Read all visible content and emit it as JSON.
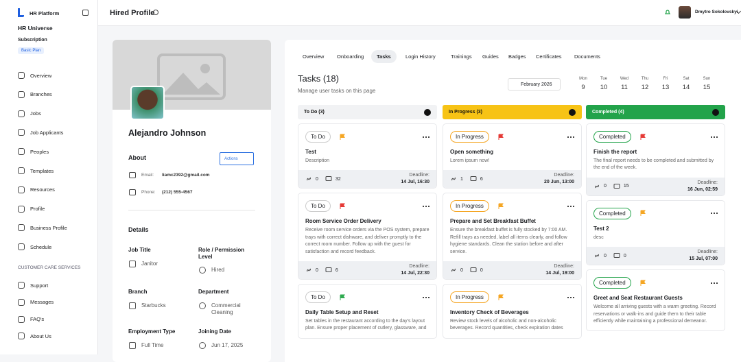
{
  "sidebar": {
    "brand": "HR Platform",
    "org": "HR Universe",
    "subscription_label": "Subscription",
    "plan": "Basic Plan",
    "nav": [
      "Overview",
      "Branches",
      "Jobs",
      "Job Applicants",
      "Peoples",
      "Templates",
      "Resources",
      "Profile",
      "Business Profile",
      "Schedule"
    ],
    "section": "CUSTOMER CARE SERVICES",
    "support_nav": [
      "Support",
      "Messages",
      "FAQ's",
      "About Us"
    ]
  },
  "header": {
    "title": "Hired Profile",
    "user": "Dmytro Sokolovskyi"
  },
  "profile": {
    "name": "Alejandro Johnson",
    "about_title": "About",
    "actions": "Actions",
    "email_label": "Email:",
    "email": "liamc2392@gmail.com",
    "phone_label": "Phone:",
    "phone": "(212) 555-4567",
    "details_title": "Details",
    "fields": [
      {
        "label": "Job Title",
        "value": "Janitor"
      },
      {
        "label": "Role / Permission Level",
        "value": "Hired"
      },
      {
        "label": "Branch",
        "value": "Starbucks"
      },
      {
        "label": "Department",
        "value": "Commercial Cleaning"
      },
      {
        "label": "Employment Type",
        "value": "Full Time"
      },
      {
        "label": "Joining Date",
        "value": "Jun 17, 2025"
      }
    ]
  },
  "tabs": {
    "items": [
      "Overview",
      "Onboarding",
      "Tasks",
      "Login History",
      "Trainings",
      "Guides",
      "Badges",
      "Certificates",
      "Documents"
    ],
    "active": 2
  },
  "tasks": {
    "title": "Tasks (18)",
    "subtitle": "Manage user tasks on this page",
    "month": "February 2026",
    "week": [
      {
        "day": "Mon",
        "date": 9
      },
      {
        "day": "Tue",
        "date": 10
      },
      {
        "day": "Wed",
        "date": 11
      },
      {
        "day": "Thu",
        "date": 12
      },
      {
        "day": "Fri",
        "date": 13
      },
      {
        "day": "Sat",
        "date": 14
      },
      {
        "day": "Sun",
        "date": 15
      }
    ],
    "deadline_label": "Deadline:",
    "columns": [
      {
        "title": "To Do (3)",
        "color": "#f1f2f4",
        "text_color": "#111111",
        "cards": [
          {
            "status": "To Do",
            "flag": "#f5a623",
            "title": "Test",
            "description": "Description",
            "links": 0,
            "comments": 32,
            "deadline": "14 Jul, 16:30"
          },
          {
            "status": "To Do",
            "flag": "#e53935",
            "title": "Room Service Order Delivery",
            "description": "Receive room service orders via the POS system, prepare trays with correct dishware, and deliver promptly to the correct room number. Follow up with the guest for satisfaction and record feedback.",
            "links": 0,
            "comments": 6,
            "deadline": "14 Jul, 22:30"
          },
          {
            "status": "To Do",
            "flag": "#2eaa4f",
            "title": "Daily Table Setup and Reset",
            "description": "Set tables in the restaurant according to the day's layout plan. Ensure proper placement of cutlery, glassware, and"
          }
        ]
      },
      {
        "title": "In Progress (3)",
        "color": "#f7c315",
        "text_color": "#111111",
        "cards": [
          {
            "status": "In Progress",
            "flag": "#e53935",
            "title": "Open something",
            "description": "Lorem ipsum now!",
            "links": 1,
            "comments": 6,
            "deadline": "20 Jun, 13:00"
          },
          {
            "status": "In Progress",
            "flag": "#f5a623",
            "title": "Prepare and Set Breakfast Buffet",
            "description": "Ensure the breakfast buffet is fully stocked by 7:00 AM. Refill trays as needed, label all items clearly, and follow hygiene standards. Clean the station before and after service.",
            "links": 0,
            "comments": 0,
            "deadline": "14 Jul, 19:00"
          },
          {
            "status": "In Progress",
            "flag": "#f5a623",
            "title": "Inventory Check of Beverages",
            "description": "Review stock levels of alcoholic and non-alcoholic beverages. Record quantities, check expiration dates"
          }
        ]
      },
      {
        "title": "Completed (4)",
        "color": "#22a34a",
        "text_color": "#ffffff",
        "cards": [
          {
            "status": "Completed",
            "flag": "#e53935",
            "title": "Finish the report",
            "description": "The final report needs to be completed and submitted by the end of the week.",
            "links": 0,
            "comments": 15,
            "deadline": "16 Jun, 02:59"
          },
          {
            "status": "Completed",
            "flag": "#f5a623",
            "title": "Test 2",
            "description": "desc",
            "links": 0,
            "comments": 0,
            "deadline": "15 Jul, 07:00"
          },
          {
            "status": "Completed",
            "flag": "#f5a623",
            "title": "Greet and Seat Restaurant Guests",
            "description": "Welcome all arriving guests with a warm greeting. Record reservations or walk-ins and guide them to their table efficiently while maintaining a professional demeanor."
          }
        ]
      }
    ]
  }
}
